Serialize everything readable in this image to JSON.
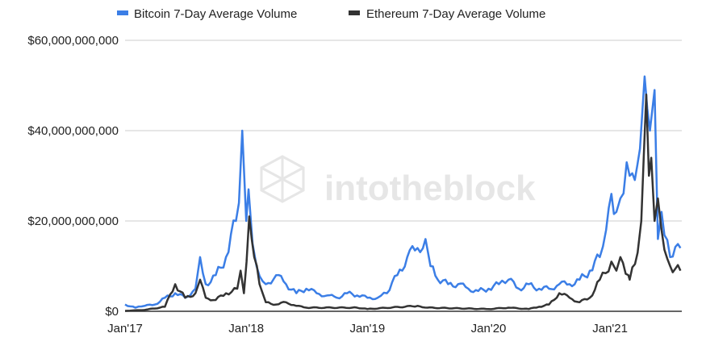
{
  "chart_data": {
    "type": "line",
    "title": "",
    "xlabel": "",
    "ylabel": "",
    "legend_position": "top",
    "grid": true,
    "watermark": "intotheblock",
    "x_ticks": [
      "Jan'17",
      "Jan'18",
      "Jan'19",
      "Jan'20",
      "Jan'21"
    ],
    "y_ticks": [
      "$0",
      "$20,000,000,000",
      "$40,000,000,000",
      "$60,000,000,000"
    ],
    "ylim": [
      0,
      60000000000
    ],
    "xlim": [
      "2017-01-01",
      "2021-08-05"
    ],
    "y_unit": "billion USD",
    "series": [
      {
        "name": "Bitcoin 7-Day Average Volume",
        "color": "#3b7ee6",
        "points": [
          [
            "2017-01-01",
            1.5
          ],
          [
            "2017-02-01",
            0.8
          ],
          [
            "2017-03-01",
            1.2
          ],
          [
            "2017-04-01",
            1.5
          ],
          [
            "2017-05-01",
            3
          ],
          [
            "2017-06-01",
            4
          ],
          [
            "2017-07-01",
            3
          ],
          [
            "2017-08-01",
            5
          ],
          [
            "2017-08-15",
            12
          ],
          [
            "2017-09-01",
            6
          ],
          [
            "2017-10-01",
            8
          ],
          [
            "2017-11-01",
            12
          ],
          [
            "2017-12-01",
            20
          ],
          [
            "2017-12-10",
            24
          ],
          [
            "2017-12-20",
            40
          ],
          [
            "2018-01-01",
            20
          ],
          [
            "2018-01-08",
            27
          ],
          [
            "2018-01-20",
            15
          ],
          [
            "2018-02-01",
            10
          ],
          [
            "2018-03-01",
            6
          ],
          [
            "2018-04-01",
            8
          ],
          [
            "2018-05-01",
            6
          ],
          [
            "2018-06-01",
            4
          ],
          [
            "2018-07-01",
            5
          ],
          [
            "2018-08-01",
            4
          ],
          [
            "2018-09-01",
            3.5
          ],
          [
            "2018-10-01",
            3
          ],
          [
            "2018-11-01",
            4
          ],
          [
            "2018-12-01",
            3.5
          ],
          [
            "2019-01-01",
            3
          ],
          [
            "2019-02-01",
            3
          ],
          [
            "2019-03-01",
            4
          ],
          [
            "2019-04-01",
            8
          ],
          [
            "2019-05-01",
            12
          ],
          [
            "2019-06-01",
            14
          ],
          [
            "2019-06-25",
            16
          ],
          [
            "2019-07-10",
            10
          ],
          [
            "2019-08-01",
            7
          ],
          [
            "2019-09-01",
            6
          ],
          [
            "2019-10-01",
            6
          ],
          [
            "2019-11-01",
            5
          ],
          [
            "2019-12-01",
            4.5
          ],
          [
            "2020-01-01",
            5
          ],
          [
            "2020-02-01",
            6
          ],
          [
            "2020-03-01",
            7
          ],
          [
            "2020-04-01",
            5
          ],
          [
            "2020-05-01",
            6
          ],
          [
            "2020-06-01",
            5
          ],
          [
            "2020-07-01",
            5
          ],
          [
            "2020-08-01",
            6
          ],
          [
            "2020-09-01",
            6
          ],
          [
            "2020-10-01",
            7
          ],
          [
            "2020-11-01",
            9
          ],
          [
            "2020-12-01",
            12
          ],
          [
            "2020-12-20",
            18
          ],
          [
            "2021-01-05",
            26
          ],
          [
            "2021-01-20",
            22
          ],
          [
            "2021-02-01",
            25
          ],
          [
            "2021-02-20",
            33
          ],
          [
            "2021-03-01",
            30
          ],
          [
            "2021-04-01",
            36
          ],
          [
            "2021-04-15",
            52
          ],
          [
            "2021-05-01",
            40
          ],
          [
            "2021-05-15",
            49
          ],
          [
            "2021-05-25",
            16
          ],
          [
            "2021-06-05",
            22
          ],
          [
            "2021-07-01",
            12
          ],
          [
            "2021-08-01",
            14
          ]
        ]
      },
      {
        "name": "Ethereum 7-Day Average Volume",
        "color": "#333333",
        "points": [
          [
            "2017-01-01",
            0.1
          ],
          [
            "2017-03-01",
            0.3
          ],
          [
            "2017-05-01",
            1
          ],
          [
            "2017-06-01",
            6
          ],
          [
            "2017-07-01",
            3
          ],
          [
            "2017-08-01",
            4
          ],
          [
            "2017-08-15",
            7
          ],
          [
            "2017-09-01",
            3
          ],
          [
            "2017-10-01",
            2.5
          ],
          [
            "2017-11-01",
            4
          ],
          [
            "2017-12-05",
            5
          ],
          [
            "2017-12-15",
            9
          ],
          [
            "2017-12-25",
            4
          ],
          [
            "2018-01-10",
            21
          ],
          [
            "2018-01-25",
            12
          ],
          [
            "2018-02-10",
            6
          ],
          [
            "2018-03-01",
            2
          ],
          [
            "2018-04-01",
            1.5
          ],
          [
            "2018-05-01",
            2
          ],
          [
            "2018-06-01",
            1.2
          ],
          [
            "2018-07-01",
            0.8
          ],
          [
            "2018-12-01",
            0.8
          ],
          [
            "2019-01-01",
            0.5
          ],
          [
            "2019-06-01",
            1.2
          ],
          [
            "2019-07-01",
            0.8
          ],
          [
            "2020-01-01",
            0.5
          ],
          [
            "2020-03-01",
            0.8
          ],
          [
            "2020-05-01",
            0.5
          ],
          [
            "2020-06-01",
            1
          ],
          [
            "2020-07-01",
            1.5
          ],
          [
            "2020-08-01",
            4
          ],
          [
            "2020-09-01",
            3
          ],
          [
            "2020-10-01",
            2
          ],
          [
            "2020-11-01",
            3
          ],
          [
            "2020-12-01",
            7
          ],
          [
            "2021-01-05",
            11
          ],
          [
            "2021-01-20",
            9
          ],
          [
            "2021-02-01",
            12
          ],
          [
            "2021-02-25",
            8
          ],
          [
            "2021-03-01",
            7
          ],
          [
            "2021-03-25",
            13
          ],
          [
            "2021-04-05",
            20
          ],
          [
            "2021-04-20",
            48
          ],
          [
            "2021-04-28",
            30
          ],
          [
            "2021-05-05",
            34
          ],
          [
            "2021-05-15",
            20
          ],
          [
            "2021-05-25",
            25
          ],
          [
            "2021-06-05",
            18
          ],
          [
            "2021-07-01",
            10
          ],
          [
            "2021-08-01",
            9
          ]
        ]
      }
    ]
  }
}
